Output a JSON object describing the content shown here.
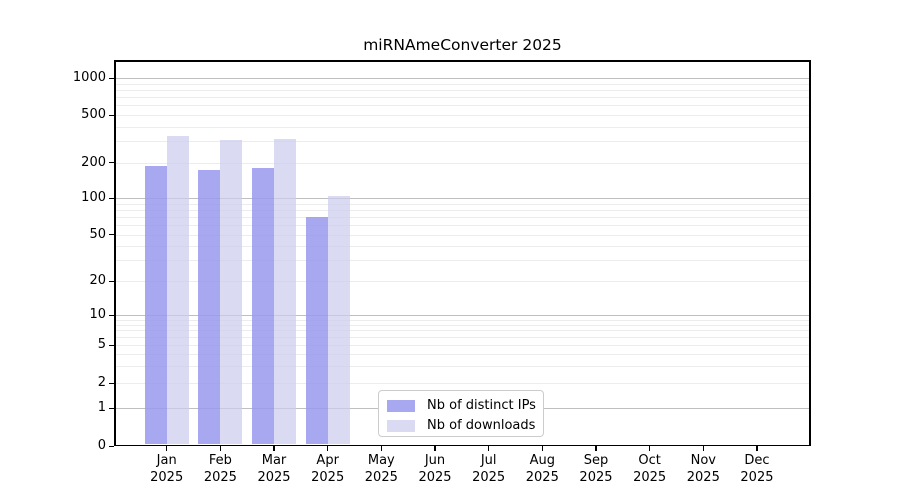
{
  "title": "miRNAmeConverter 2025",
  "chart_data": {
    "type": "bar",
    "title": "miRNAmeConverter 2025",
    "categories": [
      "Jan 2025",
      "Feb 2025",
      "Mar 2025",
      "Apr 2025",
      "May 2025",
      "Jun 2025",
      "Jul 2025",
      "Aug 2025",
      "Sep 2025",
      "Oct 2025",
      "Nov 2025",
      "Dec 2025"
    ],
    "series": [
      {
        "name": "Nb of distinct IPs",
        "color": "rgba(153,153,238,0.85)",
        "solid_color": "#aaaaf2",
        "values": [
          187,
          172,
          180,
          70,
          0,
          0,
          0,
          0,
          0,
          0,
          0,
          0
        ]
      },
      {
        "name": "Nb of downloads",
        "color": "rgba(204,204,238,0.72)",
        "solid_color": "#dcdcf8",
        "values": [
          335,
          310,
          315,
          105,
          0,
          0,
          0,
          0,
          0,
          0,
          0,
          0
        ]
      }
    ],
    "xlabel": "",
    "ylabel": "",
    "yscale": "symlog",
    "yticks": [
      0,
      1,
      2,
      5,
      10,
      20,
      50,
      100,
      200,
      500,
      1000
    ],
    "ylim": [
      0,
      1400
    ],
    "grid": "horizontal, light minor lines + gray decade lines",
    "legend_position": "lower center",
    "colors": {
      "major_grid": "#bfbfbf",
      "minor_grid": "#ececec",
      "spine": "#000000",
      "background": "#ffffff"
    }
  }
}
